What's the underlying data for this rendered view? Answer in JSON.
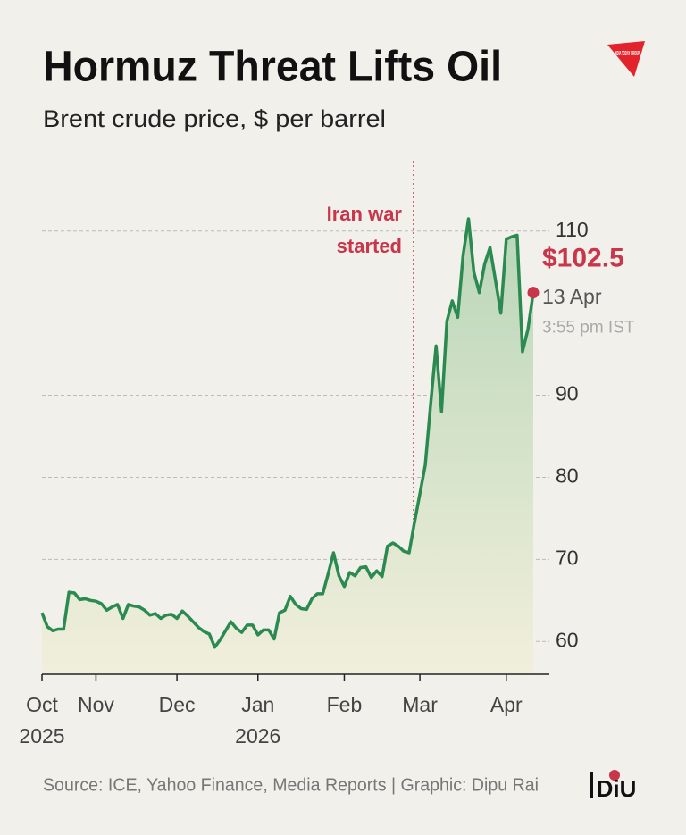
{
  "chart_data": {
    "type": "line",
    "title": "Hormuz Threat Lifts Oil",
    "subtitle": "Brent crude price, $ per barrel",
    "source": "Source: ICE, Yahoo Finance, Media Reports | Graphic: Dipu Rai",
    "logos": [
      "INDIA TODAY GROUP",
      "DiU"
    ],
    "annotations": {
      "event": "Iran war started",
      "date": "13 Apr",
      "time": "3:55 pm IST"
    },
    "color": "#2b8a50",
    "marker_color": "#c9364a",
    "grid": true,
    "ylim": [
      56,
      114
    ],
    "yticks": [
      60,
      70,
      80,
      90,
      110
    ],
    "categories": [
      "Oct 2025",
      null,
      null,
      null,
      null,
      null,
      null,
      null,
      null,
      null,
      "Nov",
      null,
      null,
      null,
      null,
      null,
      null,
      null,
      null,
      null,
      null,
      null,
      null,
      null,
      null,
      "Dec",
      null,
      null,
      null,
      null,
      null,
      null,
      null,
      null,
      null,
      null,
      null,
      null,
      null,
      null,
      "Jan 2026",
      null,
      null,
      null,
      null,
      null,
      null,
      null,
      null,
      null,
      null,
      null,
      null,
      null,
      null,
      null,
      "Feb",
      null,
      null,
      null,
      null,
      null,
      null,
      null,
      null,
      null,
      null,
      null,
      null,
      null,
      "Mar",
      null,
      null,
      null,
      null,
      null,
      null,
      null,
      null,
      null,
      null,
      null,
      null,
      null,
      null,
      null,
      "Apr",
      null,
      null,
      null,
      null,
      null
    ],
    "values": [
      63.5,
      61.8,
      61.3,
      61.5,
      61.5,
      66,
      65.9,
      65.1,
      65.2,
      65,
      64.9,
      64.6,
      63.8,
      64.2,
      64.5,
      62.8,
      64.5,
      64.3,
      64.2,
      63.8,
      63.2,
      63.4,
      62.8,
      63.2,
      63.3,
      62.8,
      63.7,
      63.1,
      62.4,
      61.7,
      61.2,
      60.9,
      59.3,
      60.2,
      61.3,
      62.4,
      61.6,
      61.1,
      62,
      62,
      60.8,
      61.4,
      61.4,
      60.3,
      63.5,
      63.8,
      65.5,
      64.5,
      64,
      63.9,
      65.2,
      65.8,
      65.8,
      68.2,
      70.8,
      68,
      66.7,
      68.4,
      68,
      69,
      69.1,
      67.8,
      68.6,
      67.9,
      71.6,
      72,
      71.6,
      71,
      70.8,
      74.5,
      78,
      81.5,
      89,
      96,
      88,
      99,
      101.5,
      99.5,
      107,
      111.5,
      105,
      102.5,
      106,
      108,
      104,
      100,
      109,
      109.3,
      109.5,
      95.3,
      98,
      102.5
    ],
    "value_labels": [
      null,
      null,
      null,
      null,
      null,
      null,
      null,
      null,
      null,
      null,
      null,
      null,
      null,
      null,
      null,
      null,
      null,
      null,
      null,
      null,
      null,
      null,
      null,
      null,
      null,
      null,
      null,
      null,
      null,
      null,
      null,
      null,
      null,
      null,
      null,
      null,
      null,
      null,
      null,
      null,
      null,
      null,
      null,
      null,
      null,
      null,
      null,
      null,
      null,
      null,
      null,
      null,
      null,
      null,
      null,
      null,
      null,
      null,
      null,
      null,
      null,
      null,
      null,
      null,
      null,
      null,
      null,
      null,
      null,
      null,
      null,
      null,
      null,
      null,
      null,
      null,
      null,
      null,
      null,
      null,
      null,
      null,
      null,
      null,
      null,
      null,
      null,
      null,
      null,
      null,
      null,
      "$102.5"
    ]
  }
}
